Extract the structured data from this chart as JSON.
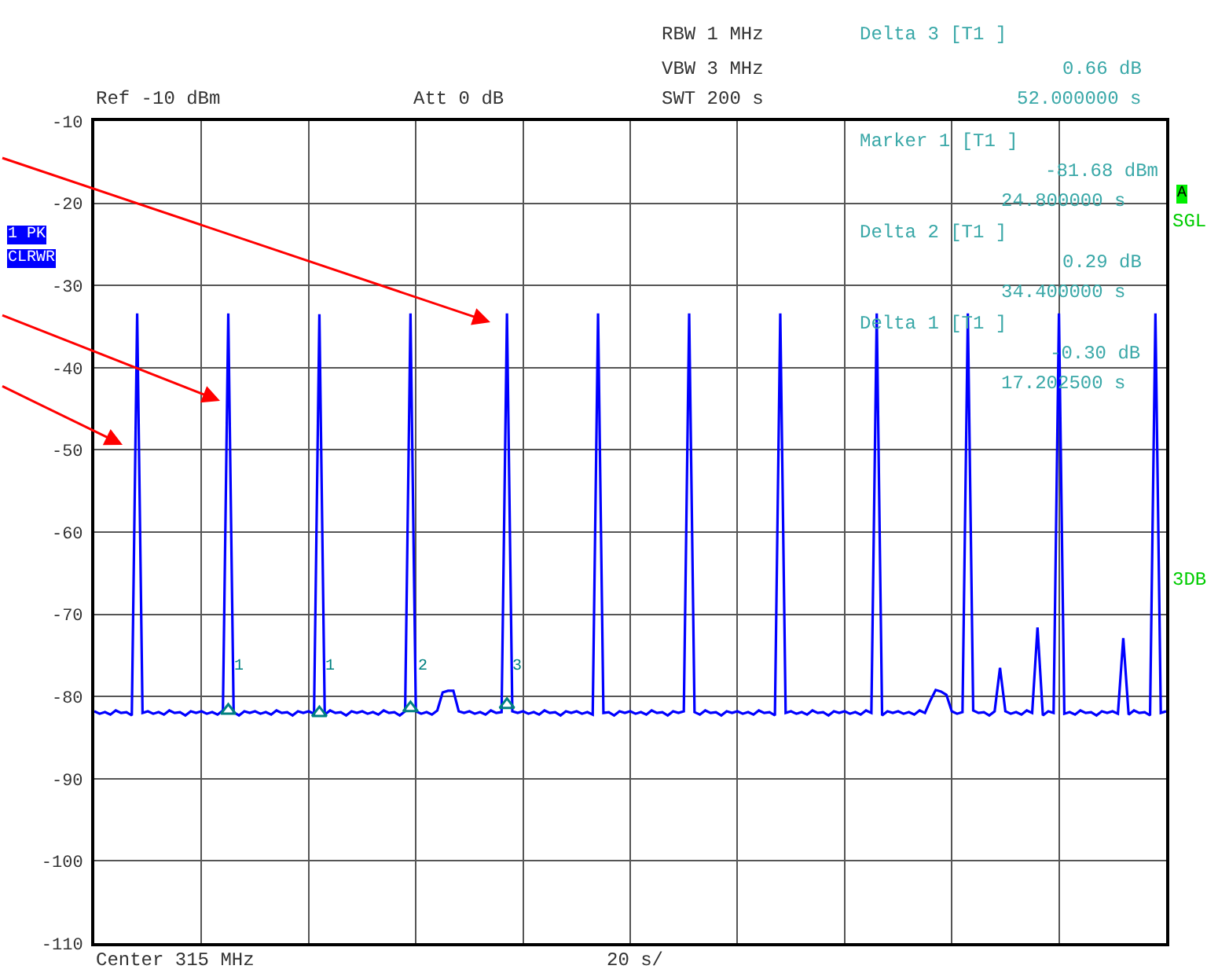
{
  "chart_data": {
    "type": "line",
    "categories": [
      null,
      null,
      null,
      null,
      null,
      null,
      null,
      null,
      null,
      null,
      null,
      null,
      null,
      null,
      null,
      null,
      null,
      null,
      null,
      null,
      null,
      null,
      null,
      null,
      null,
      null,
      null,
      null,
      null,
      null,
      null,
      null,
      null,
      null,
      null,
      null,
      null,
      null,
      null,
      null,
      null,
      null,
      null,
      null,
      null,
      null,
      null,
      null,
      null,
      null,
      null,
      null,
      null,
      null,
      null,
      null,
      null,
      null,
      null,
      null,
      null,
      null,
      null,
      null,
      null,
      null,
      null,
      null,
      null,
      null,
      null,
      null,
      null,
      null,
      null,
      null,
      null,
      null,
      null,
      null,
      null,
      null,
      null,
      null,
      null,
      null,
      null,
      null,
      null,
      null,
      null,
      null,
      null,
      null,
      null,
      null,
      null,
      null,
      null,
      null,
      null,
      null,
      null,
      null,
      null,
      null,
      null,
      null,
      null,
      null,
      null,
      null,
      null,
      null,
      null,
      null,
      null,
      null,
      null,
      null,
      null,
      null,
      null,
      null,
      null,
      null,
      null,
      null,
      null,
      null,
      null,
      null,
      null,
      null,
      null,
      null,
      null,
      null,
      null,
      null,
      null,
      null,
      null,
      null,
      null,
      null,
      null,
      null,
      null,
      null,
      null,
      null,
      null,
      null,
      null,
      null,
      null,
      null,
      null,
      null,
      null,
      null,
      null,
      null,
      null,
      null,
      null,
      null,
      null,
      null,
      null,
      null,
      null,
      null,
      null,
      null,
      null,
      null,
      null,
      null,
      null,
      null,
      null,
      null,
      null,
      null,
      null,
      null,
      null,
      null,
      null,
      null,
      null,
      null,
      null,
      null,
      null,
      null,
      null,
      null,
      null
    ],
    "ylim": [
      -110,
      -10
    ],
    "yticks": [
      -10,
      -20,
      -30,
      -40,
      -50,
      -60,
      -70,
      -80,
      -90,
      -100,
      -110
    ],
    "tick_labels": "y",
    "grid": true,
    "legend": false,
    "series": [
      {
        "color": "#0000ff",
        "marker": "none",
        "line_style": "solid",
        "values": [
          -81.8,
          -82.1,
          -81.9,
          -82.2,
          -81.7,
          -82.0,
          -81.9,
          -82.3,
          -33.4,
          -82.0,
          -81.8,
          -82.1,
          -81.9,
          -82.2,
          -81.7,
          -82.0,
          -81.9,
          -82.3,
          -81.8,
          -82.0,
          -81.8,
          -82.1,
          -81.9,
          -82.2,
          -81.7,
          -33.4,
          -81.9,
          -82.3,
          -81.8,
          -82.0,
          -81.8,
          -82.1,
          -81.9,
          -82.2,
          -81.7,
          -82.0,
          -81.9,
          -82.3,
          -81.8,
          -82.0,
          -81.8,
          -82.1,
          -33.5,
          -82.2,
          -81.7,
          -82.0,
          -81.9,
          -82.3,
          -81.8,
          -82.0,
          -81.8,
          -82.1,
          -81.9,
          -82.2,
          -81.7,
          -82.0,
          -81.9,
          -82.3,
          -81.8,
          -33.4,
          -81.8,
          -82.1,
          -81.9,
          -82.2,
          -81.7,
          -79.5,
          -79.3,
          -79.3,
          -81.8,
          -82.0,
          -81.8,
          -82.1,
          -81.9,
          -82.2,
          -81.7,
          -82.0,
          -81.9,
          -33.4,
          -81.8,
          -82.0,
          -81.8,
          -82.1,
          -81.9,
          -82.2,
          -81.7,
          -82.0,
          -81.9,
          -82.3,
          -81.8,
          -82.0,
          -81.8,
          -82.1,
          -81.9,
          -82.2,
          -33.4,
          -82.0,
          -81.9,
          -82.3,
          -81.8,
          -82.0,
          -81.8,
          -82.1,
          -81.9,
          -82.2,
          -81.7,
          -82.0,
          -81.9,
          -82.3,
          -81.8,
          -82.0,
          -81.8,
          -33.4,
          -81.9,
          -82.2,
          -81.7,
          -82.0,
          -81.9,
          -82.3,
          -81.8,
          -82.0,
          -81.8,
          -82.1,
          -81.9,
          -82.2,
          -81.7,
          -82.0,
          -81.9,
          -82.3,
          -33.4,
          -82.0,
          -81.8,
          -82.1,
          -81.9,
          -82.2,
          -81.7,
          -82.0,
          -81.9,
          -82.3,
          -81.8,
          -82.0,
          -81.8,
          -82.1,
          -81.9,
          -82.2,
          -81.7,
          -82.0,
          -33.4,
          -82.3,
          -81.8,
          -82.0,
          -81.8,
          -82.1,
          -81.9,
          -82.2,
          -81.7,
          -82.0,
          -80.5,
          -79.2,
          -79.4,
          -79.8,
          -81.8,
          -82.1,
          -81.9,
          -33.4,
          -81.7,
          -82.0,
          -81.9,
          -82.3,
          -81.8,
          -76.5,
          -81.8,
          -82.1,
          -81.9,
          -82.2,
          -81.7,
          -82.0,
          -71.6,
          -82.3,
          -81.8,
          -82.0,
          -33.4,
          -82.1,
          -81.9,
          -82.2,
          -81.7,
          -82.0,
          -81.9,
          -82.3,
          -81.8,
          -82.0,
          -81.8,
          -82.1,
          -72.9,
          -82.2,
          -81.7,
          -82.0,
          -81.9,
          -82.3,
          -33.4,
          -82.0,
          -81.8
        ]
      },
      {
        "type": "scatter",
        "color": "#008080",
        "marker": "triangle",
        "values": [
          null,
          null,
          null,
          null,
          null,
          null,
          null,
          null,
          null,
          null,
          null,
          null,
          null,
          null,
          null,
          null,
          null,
          null,
          null,
          null,
          null,
          null,
          null,
          null,
          null,
          -81.7,
          null,
          null,
          null,
          null,
          null,
          null,
          null,
          null,
          null,
          null,
          null,
          null,
          null,
          null,
          null,
          null,
          -82.0,
          null,
          null,
          null,
          null,
          null,
          null,
          null,
          null,
          null,
          null,
          null,
          null,
          null,
          null,
          null,
          null,
          -81.4,
          null,
          null,
          null,
          null,
          null,
          null,
          null,
          null,
          null,
          null,
          null,
          null,
          null,
          null,
          null,
          null,
          null,
          -81.0,
          null,
          null,
          null,
          null,
          null,
          null,
          null,
          null,
          null,
          null,
          null,
          null,
          null,
          null,
          null,
          null,
          null,
          null,
          null,
          null,
          null,
          null,
          null,
          null,
          null,
          null,
          null,
          null,
          null,
          null,
          null,
          null,
          null,
          null,
          null,
          null,
          null,
          null,
          null,
          null,
          null,
          null,
          null,
          null,
          null,
          null,
          null,
          null,
          null,
          null,
          null,
          null,
          null,
          null,
          null,
          null,
          null,
          null,
          null,
          null,
          null,
          null,
          null,
          null,
          null,
          null,
          null,
          null,
          null,
          null,
          null,
          null,
          null,
          null,
          null,
          null,
          null,
          null,
          null,
          null,
          null,
          null,
          null,
          null,
          null,
          null,
          null,
          null,
          null,
          null,
          null,
          null,
          null,
          null,
          null,
          null,
          null,
          null,
          null,
          null,
          null,
          null,
          null,
          null,
          null,
          null,
          null,
          null,
          null,
          null,
          null,
          null,
          null,
          null,
          null,
          null,
          null,
          null,
          null,
          null,
          null,
          null,
          null
        ]
      }
    ],
    "annotations": [
      "RBW 1 MHz",
      "VBW 3 MHz",
      "SWT 200 s",
      "Ref -10 dBm",
      "Att 0 dB",
      "Delta 3 [T1 ]",
      "0.66 dB",
      "52.000000 s",
      "Marker 1 [T1 ]",
      "-81.68 dBm",
      "24.800000 s",
      "Delta 2 [T1 ]",
      "0.29 dB",
      "34.400000 s",
      "Delta 1 [T1 ]",
      "-0.30 dB",
      "17.202500 s",
      "1 PK",
      "CLRWR",
      "A",
      "SGL",
      "3DB",
      "Center 315 MHz",
      "20 s/",
      "1",
      "1",
      "2",
      "3"
    ]
  }
}
